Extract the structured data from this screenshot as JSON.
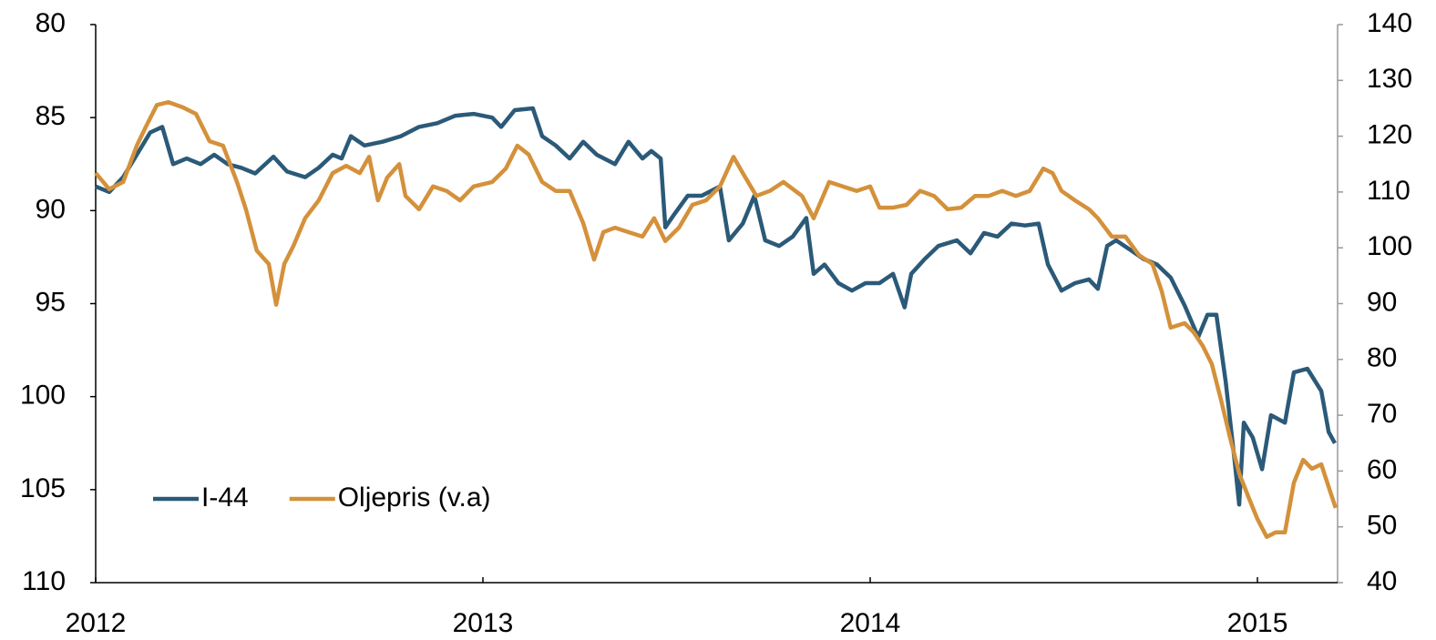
{
  "chart_data": {
    "type": "line",
    "xlim": [
      2012,
      2015.207
    ],
    "xticks": [
      2012,
      2013,
      2014,
      2015
    ],
    "ylim": [
      80,
      110
    ],
    "y_inverted": true,
    "yticks": [
      80,
      85,
      90,
      95,
      100,
      105,
      110
    ],
    "y2lim": [
      40,
      140
    ],
    "y2ticks": [
      40,
      50,
      60,
      70,
      80,
      90,
      100,
      110,
      120,
      130,
      140
    ],
    "legend": "lower left",
    "series": [
      {
        "name": "I-44",
        "color": "#2b5a78",
        "axis": "y",
        "x": [
          2012.0,
          2012.035,
          2012.071,
          2012.106,
          2012.141,
          2012.172,
          2012.2,
          2012.235,
          2012.271,
          2012.306,
          2012.341,
          2012.376,
          2012.412,
          2012.459,
          2012.494,
          2012.541,
          2012.576,
          2012.612,
          2012.635,
          2012.659,
          2012.694,
          2012.741,
          2012.788,
          2012.835,
          2012.882,
          2012.929,
          2012.976,
          2013.024,
          2013.047,
          2013.082,
          2013.129,
          2013.153,
          2013.188,
          2013.224,
          2013.259,
          2013.294,
          2013.341,
          2013.376,
          2013.412,
          2013.435,
          2013.459,
          2013.471,
          2013.494,
          2013.529,
          2013.565,
          2013.612,
          2013.635,
          2013.671,
          2013.701,
          2013.729,
          2013.765,
          2013.8,
          2013.835,
          2013.854,
          2013.882,
          2013.918,
          2013.953,
          2013.988,
          2014.024,
          2014.059,
          2014.089,
          2014.106,
          2014.141,
          2014.176,
          2014.224,
          2014.259,
          2014.294,
          2014.329,
          2014.365,
          2014.4,
          2014.435,
          2014.459,
          2014.494,
          2014.529,
          2014.565,
          2014.588,
          2014.612,
          2014.635,
          2014.671,
          2014.706,
          2014.741,
          2014.776,
          2014.812,
          2014.847,
          2014.871,
          2014.894,
          2014.918,
          2014.941,
          2014.953,
          2014.965,
          2014.988,
          2015.012,
          2015.035,
          2015.071,
          2015.094,
          2015.129,
          2015.165,
          2015.184,
          2015.2
        ],
        "values": [
          88.7,
          89,
          88.2,
          87,
          85.8,
          85.5,
          87.5,
          87.2,
          87.5,
          87,
          87.5,
          87.7,
          88,
          87.1,
          87.9,
          88.2,
          87.7,
          87,
          87.2,
          86,
          86.5,
          86.3,
          86,
          85.5,
          85.3,
          84.9,
          84.8,
          85,
          85.5,
          84.6,
          84.5,
          86,
          86.5,
          87.2,
          86.3,
          87,
          87.5,
          86.3,
          87.2,
          86.8,
          87.2,
          90.9,
          90.2,
          89.2,
          89.2,
          88.7,
          91.6,
          90.7,
          89.2,
          91.6,
          91.9,
          91.4,
          90.4,
          93.4,
          92.9,
          93.9,
          94.3,
          93.9,
          93.9,
          93.4,
          95.2,
          93.4,
          92.6,
          91.9,
          91.6,
          92.3,
          91.2,
          91.4,
          90.7,
          90.8,
          90.7,
          92.9,
          94.3,
          93.9,
          93.7,
          94.2,
          91.9,
          91.6,
          92.1,
          92.6,
          92.9,
          93.6,
          95.1,
          96.8,
          95.6,
          95.6,
          99.2,
          103.4,
          105.8,
          101.4,
          102.2,
          103.9,
          101,
          101.4,
          98.7,
          98.5,
          99.7,
          101.9,
          102.5
        ]
      },
      {
        "name": "Oljepris (v.a)",
        "color": "#d4913b",
        "axis": "y2",
        "x": [
          2012.0,
          2012.035,
          2012.071,
          2012.106,
          2012.129,
          2012.158,
          2012.188,
          2012.224,
          2012.259,
          2012.294,
          2012.329,
          2012.365,
          2012.388,
          2012.416,
          2012.447,
          2012.466,
          2012.487,
          2012.511,
          2012.541,
          2012.576,
          2012.612,
          2012.647,
          2012.682,
          2012.706,
          2012.729,
          2012.753,
          2012.784,
          2012.8,
          2012.835,
          2012.871,
          2012.906,
          2012.941,
          2012.976,
          2013.024,
          2013.059,
          2013.089,
          2013.118,
          2013.153,
          2013.188,
          2013.224,
          2013.259,
          2013.287,
          2013.311,
          2013.341,
          2013.376,
          2013.412,
          2013.442,
          2013.471,
          2013.506,
          2013.541,
          2013.576,
          2013.612,
          2013.647,
          2013.671,
          2013.706,
          2013.741,
          2013.776,
          2013.824,
          2013.854,
          2013.894,
          2013.929,
          2013.965,
          2014.0,
          2014.024,
          2014.059,
          2014.094,
          2014.129,
          2014.165,
          2014.2,
          2014.235,
          2014.271,
          2014.306,
          2014.341,
          2014.376,
          2014.412,
          2014.447,
          2014.471,
          2014.494,
          2014.529,
          2014.565,
          2014.588,
          2014.624,
          2014.659,
          2014.694,
          2014.729,
          2014.753,
          2014.776,
          2014.812,
          2014.835,
          2014.859,
          2014.882,
          2014.906,
          2014.929,
          2014.953,
          2014.976,
          2015.0,
          2015.024,
          2015.047,
          2015.071,
          2015.094,
          2015.118,
          2015.141,
          2015.165,
          2015.188,
          2015.202
        ],
        "values": [
          113.4,
          110.5,
          111.8,
          118.3,
          121.6,
          125.6,
          126.1,
          125.2,
          124,
          119.1,
          118.3,
          111.8,
          106.9,
          99.5,
          97.1,
          89.8,
          97.1,
          100.4,
          105.3,
          108.5,
          113.4,
          114.7,
          113.4,
          116.3,
          108.5,
          112.6,
          115,
          109.3,
          106.9,
          111,
          110.2,
          108.5,
          111,
          111.8,
          114.2,
          118.3,
          116.7,
          111.8,
          110.2,
          110.2,
          104.4,
          97.9,
          102.8,
          103.6,
          102.8,
          102,
          105.3,
          101.2,
          103.6,
          107.7,
          108.5,
          111,
          116.3,
          113.4,
          109.3,
          110.2,
          111.8,
          109.3,
          105.3,
          111.8,
          111,
          110.2,
          111,
          107.2,
          107.2,
          107.7,
          110.2,
          109.3,
          106.9,
          107.2,
          109.3,
          109.3,
          110.2,
          109.3,
          110.2,
          114.2,
          113.4,
          110.2,
          108.5,
          106.9,
          105.3,
          102,
          102,
          98.7,
          97.1,
          92.2,
          85.7,
          86.5,
          84.9,
          82.4,
          79.2,
          72.7,
          66.1,
          59.6,
          55.5,
          51.4,
          48.2,
          49,
          49,
          57.9,
          62,
          60.4,
          61.2,
          56.3,
          53.4
        ]
      }
    ]
  }
}
